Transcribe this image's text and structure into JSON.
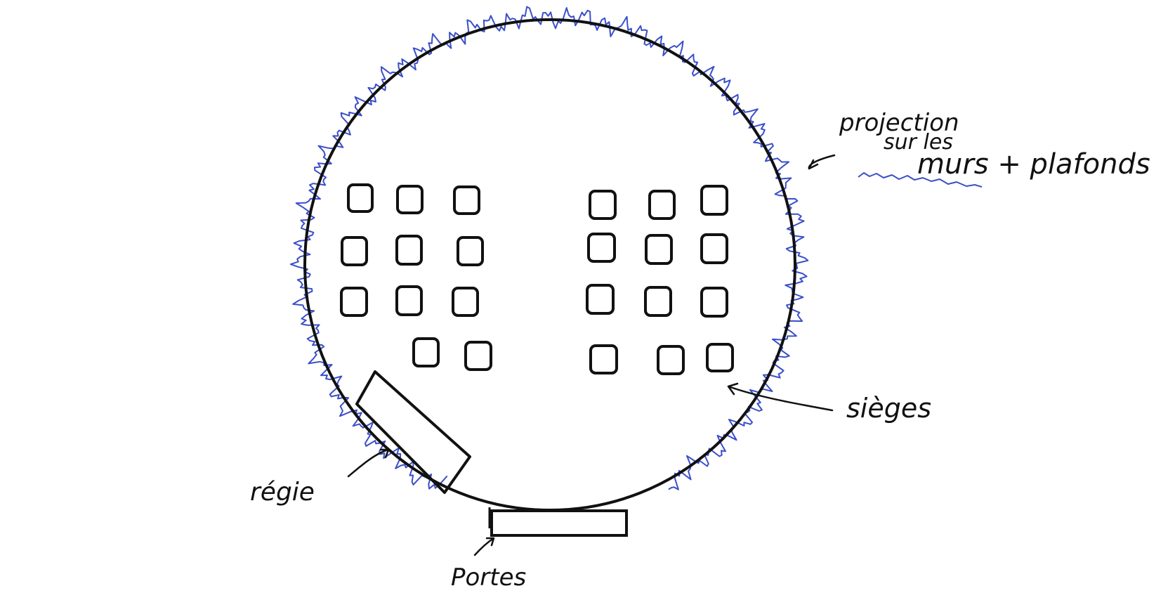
{
  "labels": {
    "projection_line1": "projection",
    "projection_line2": "sur les",
    "projection_line3": "murs + plafonds",
    "sieges": "sièges",
    "regie": "régie",
    "portes": "Portes"
  },
  "colors": {
    "ink": "#111111",
    "projection": "#3a4fc9",
    "background": "#ffffff"
  }
}
